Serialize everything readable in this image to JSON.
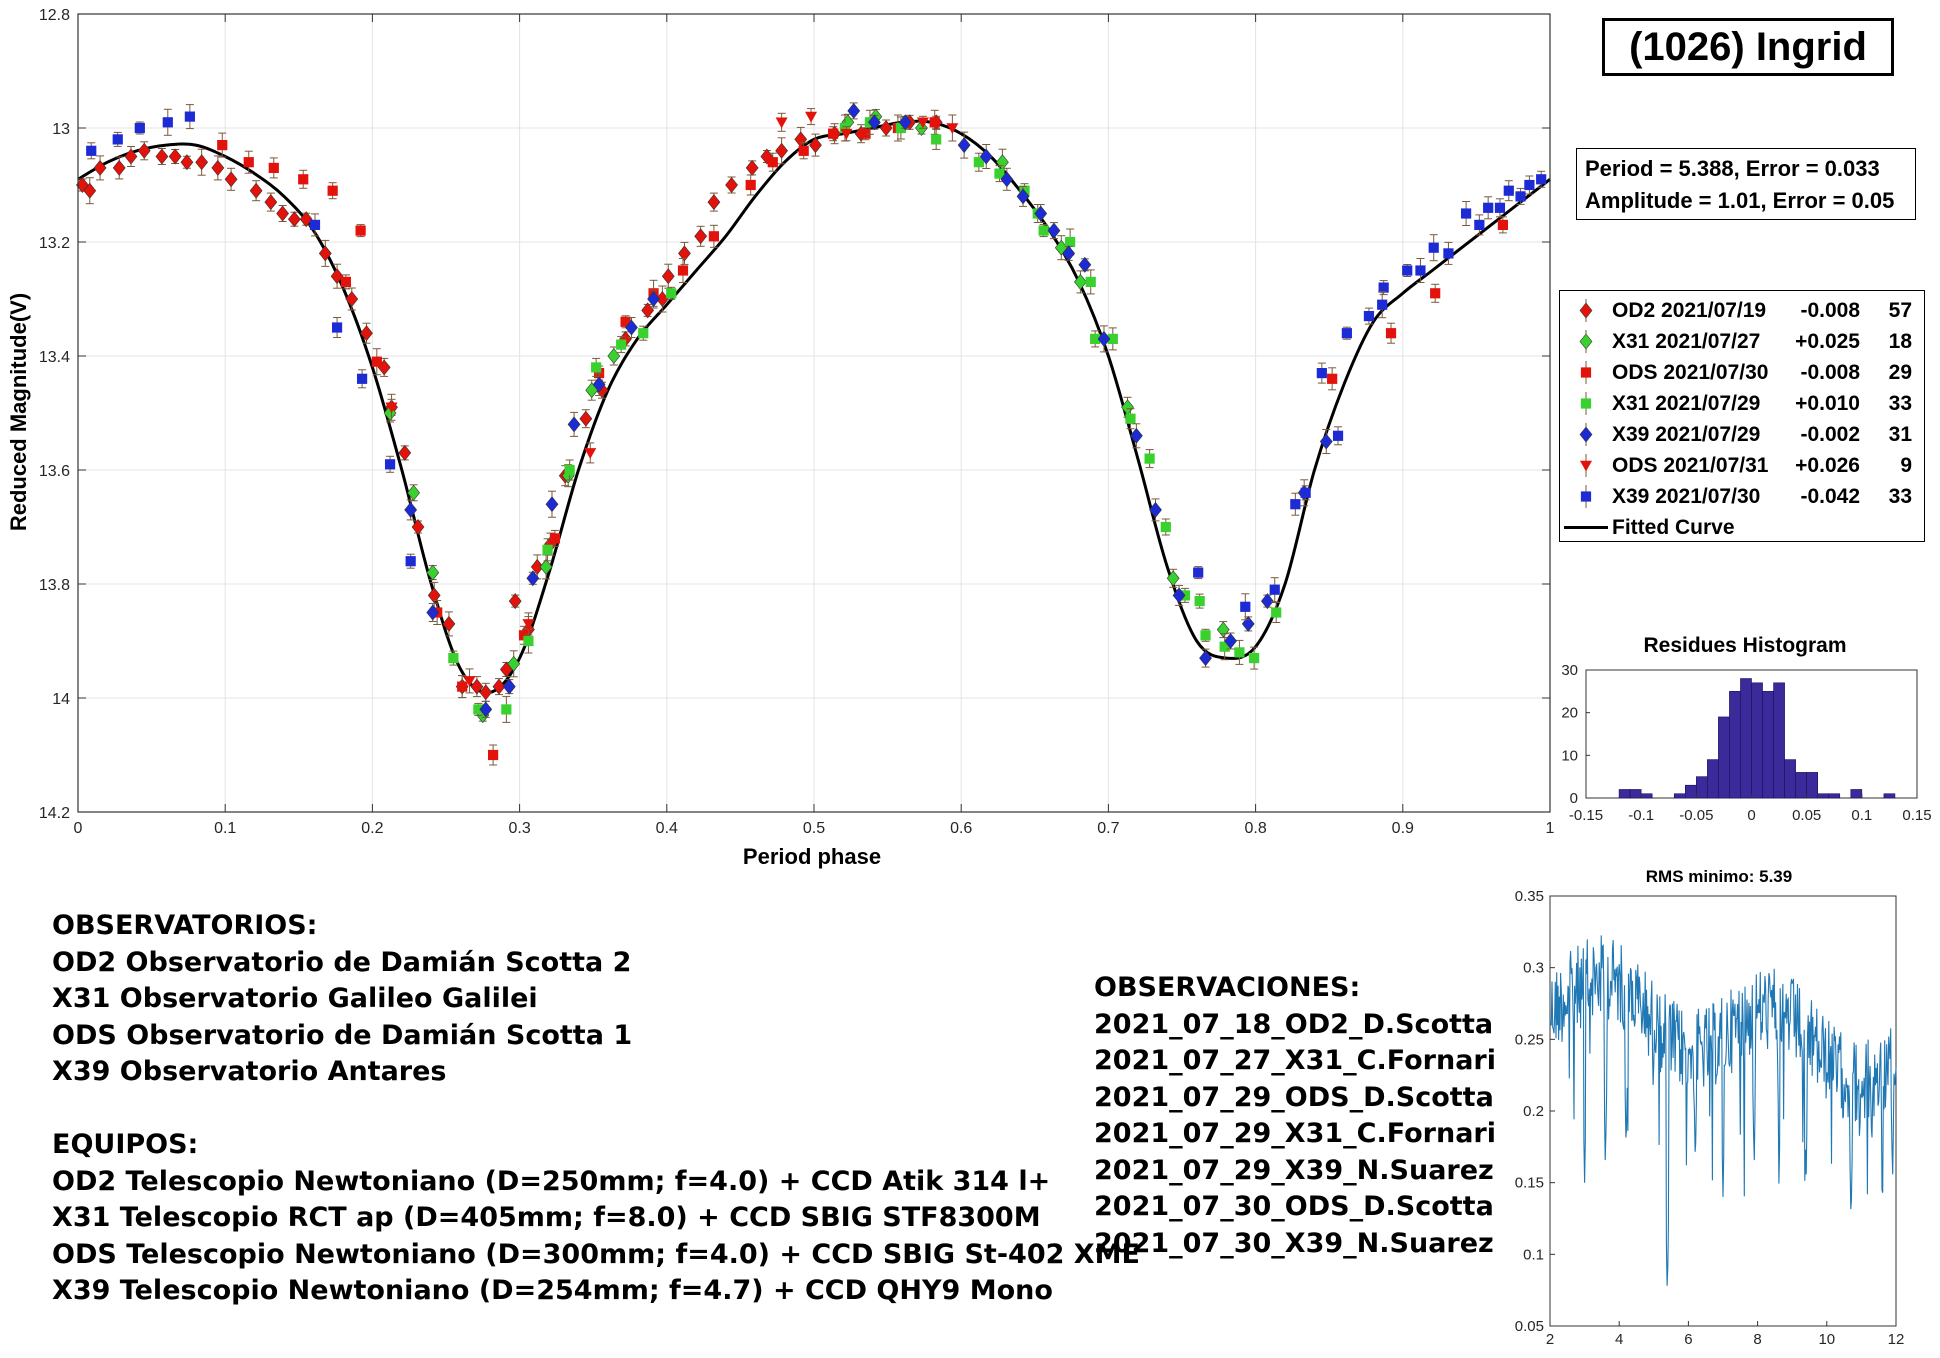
{
  "chart_data": [
    {
      "type": "scatter",
      "title": "(1026) Ingrid",
      "xlabel": "Period phase",
      "ylabel": "Reduced Magnitude(V)",
      "xlim": [
        0,
        1
      ],
      "ylim": [
        12.8,
        14.2
      ],
      "y_reversed": true,
      "grid": true,
      "xticks": [
        "0",
        "0.1",
        "0.2",
        "0.3",
        "0.4",
        "0.5",
        "0.6",
        "0.7",
        "0.8",
        "0.9",
        "1"
      ],
      "yticks": [
        "12.8",
        "13",
        "13.2",
        "13.4",
        "13.6",
        "13.8",
        "14",
        "14.2"
      ],
      "legend_position": "right-outside",
      "period_text": "Period =  5.388, Error = 0.033",
      "amplitude_text": "Amplitude = 1.01, Error = 0.05",
      "series": [
        {
          "name": "OD2 2021/07/19",
          "offset": "-0.008",
          "count": "57",
          "color": "#e3120b",
          "marker": "diamond",
          "x": [
            0.003,
            0.008,
            0.015,
            0.028,
            0.036,
            0.045,
            0.057,
            0.066,
            0.074,
            0.084,
            0.095,
            0.104,
            0.121,
            0.131,
            0.139,
            0.147,
            0.155,
            0.168,
            0.176,
            0.186,
            0.196,
            0.208,
            0.213,
            0.222,
            0.231,
            0.242,
            0.252,
            0.261,
            0.271,
            0.277,
            0.286,
            0.291,
            0.297,
            0.306,
            0.312,
            0.321,
            0.331,
            0.345,
            0.356,
            0.372,
            0.387,
            0.397,
            0.401,
            0.412,
            0.423,
            0.432,
            0.444,
            0.458,
            0.468,
            0.478,
            0.491,
            0.501,
            0.514,
            0.532,
            0.549,
            0.565,
            0.583
          ],
          "y": [
            13.1,
            13.11,
            13.07,
            13.07,
            13.05,
            13.04,
            13.05,
            13.05,
            13.06,
            13.06,
            13.07,
            13.09,
            13.11,
            13.13,
            13.15,
            13.16,
            13.16,
            13.22,
            13.26,
            13.3,
            13.36,
            13.42,
            13.49,
            13.57,
            13.7,
            13.82,
            13.87,
            13.98,
            13.98,
            13.99,
            13.98,
            13.95,
            13.83,
            13.88,
            13.77,
            13.73,
            13.61,
            13.51,
            13.46,
            13.37,
            13.32,
            13.3,
            13.26,
            13.22,
            13.19,
            13.13,
            13.1,
            13.07,
            13.05,
            13.04,
            13.02,
            13.03,
            13.01,
            13.01,
            13.0,
            12.99,
            12.99
          ]
        },
        {
          "name": "X31 2021/07/27",
          "offset": "+0.025",
          "count": "18",
          "color": "#39d12e",
          "marker": "diamond",
          "x": [
            0.212,
            0.228,
            0.241,
            0.275,
            0.296,
            0.318,
            0.333,
            0.349,
            0.364,
            0.523,
            0.542,
            0.573,
            0.628,
            0.668,
            0.681,
            0.713,
            0.744,
            0.778
          ],
          "y": [
            13.5,
            13.64,
            13.78,
            14.03,
            13.94,
            13.77,
            13.61,
            13.46,
            13.4,
            12.99,
            12.98,
            13.0,
            13.06,
            13.21,
            13.27,
            13.49,
            13.79,
            13.88
          ]
        },
        {
          "name": "ODS 2021/07/30",
          "offset": "-0.008",
          "count": "29",
          "color": "#e3120b",
          "marker": "square",
          "x": [
            0.098,
            0.116,
            0.133,
            0.153,
            0.173,
            0.182,
            0.192,
            0.203,
            0.244,
            0.261,
            0.282,
            0.303,
            0.324,
            0.354,
            0.372,
            0.391,
            0.411,
            0.432,
            0.457,
            0.472,
            0.493,
            0.513,
            0.535,
            0.557,
            0.582,
            0.852,
            0.892,
            0.922,
            0.968
          ],
          "y": [
            13.03,
            13.06,
            13.07,
            13.09,
            13.11,
            13.27,
            13.18,
            13.41,
            13.85,
            13.98,
            14.1,
            13.89,
            13.72,
            13.43,
            13.34,
            13.29,
            13.25,
            13.19,
            13.1,
            13.06,
            13.04,
            13.01,
            13.01,
            13.0,
            12.99,
            13.44,
            13.36,
            13.29,
            13.17
          ]
        },
        {
          "name": "X31 2021/07/29",
          "offset": "+0.010",
          "count": "33",
          "color": "#39d12e",
          "marker": "square",
          "x": [
            0.255,
            0.272,
            0.291,
            0.306,
            0.319,
            0.334,
            0.352,
            0.369,
            0.384,
            0.403,
            0.521,
            0.538,
            0.559,
            0.583,
            0.612,
            0.626,
            0.643,
            0.656,
            0.674,
            0.688,
            0.703,
            0.715,
            0.728,
            0.739,
            0.752,
            0.766,
            0.779,
            0.789,
            0.799,
            0.814,
            0.652,
            0.691,
            0.762
          ],
          "y": [
            13.93,
            14.02,
            14.02,
            13.9,
            13.74,
            13.6,
            13.42,
            13.38,
            13.36,
            13.29,
            13.0,
            12.99,
            13.0,
            13.02,
            13.06,
            13.08,
            13.11,
            13.18,
            13.2,
            13.27,
            13.37,
            13.51,
            13.58,
            13.7,
            13.82,
            13.89,
            13.91,
            13.92,
            13.93,
            13.85,
            13.15,
            13.37,
            13.83
          ]
        },
        {
          "name": "X39 2021/07/29",
          "offset": "-0.002",
          "count": "31",
          "color": "#1d2bd4",
          "marker": "diamond",
          "x": [
            0.226,
            0.241,
            0.277,
            0.293,
            0.309,
            0.322,
            0.337,
            0.354,
            0.376,
            0.391,
            0.527,
            0.541,
            0.562,
            0.602,
            0.617,
            0.631,
            0.642,
            0.654,
            0.663,
            0.673,
            0.684,
            0.697,
            0.719,
            0.732,
            0.748,
            0.766,
            0.783,
            0.795,
            0.808,
            0.833,
            0.848
          ],
          "y": [
            13.67,
            13.85,
            14.02,
            13.98,
            13.79,
            13.66,
            13.52,
            13.45,
            13.35,
            13.3,
            12.97,
            12.99,
            12.99,
            13.03,
            13.05,
            13.09,
            13.12,
            13.15,
            13.18,
            13.22,
            13.24,
            13.37,
            13.54,
            13.67,
            13.82,
            13.93,
            13.9,
            13.87,
            13.83,
            13.64,
            13.55
          ]
        },
        {
          "name": "ODS 2021/07/31",
          "offset": "+0.026",
          "count": "9",
          "color": "#e3120b",
          "marker": "triangle",
          "x": [
            0.213,
            0.266,
            0.306,
            0.348,
            0.478,
            0.498,
            0.522,
            0.574,
            0.594
          ],
          "y": [
            13.49,
            13.97,
            13.87,
            13.57,
            12.99,
            12.98,
            13.01,
            12.99,
            13.0
          ]
        },
        {
          "name": "X39 2021/07/30",
          "offset": "-0.042",
          "count": "33",
          "color": "#1d2bd4",
          "marker": "square",
          "x": [
            0.009,
            0.027,
            0.042,
            0.061,
            0.076,
            0.161,
            0.176,
            0.193,
            0.212,
            0.226,
            0.761,
            0.793,
            0.813,
            0.827,
            0.845,
            0.856,
            0.877,
            0.887,
            0.903,
            0.921,
            0.943,
            0.958,
            0.972,
            0.986,
            0.994,
            0.834,
            0.862,
            0.886,
            0.912,
            0.931,
            0.952,
            0.966,
            0.98
          ],
          "y": [
            13.04,
            13.02,
            13.0,
            12.99,
            12.98,
            13.17,
            13.35,
            13.44,
            13.59,
            13.76,
            13.78,
            13.84,
            13.81,
            13.66,
            13.43,
            13.54,
            13.33,
            13.28,
            13.25,
            13.21,
            13.15,
            13.14,
            13.11,
            13.1,
            13.09,
            13.64,
            13.36,
            13.31,
            13.25,
            13.22,
            13.17,
            13.14,
            13.12
          ]
        }
      ],
      "fitted_curve": {
        "name": "Fitted Curve",
        "color": "#000000",
        "x": [
          0.0,
          0.02,
          0.04,
          0.06,
          0.08,
          0.1,
          0.12,
          0.14,
          0.16,
          0.18,
          0.2,
          0.22,
          0.24,
          0.26,
          0.28,
          0.3,
          0.32,
          0.34,
          0.36,
          0.38,
          0.4,
          0.42,
          0.44,
          0.46,
          0.48,
          0.5,
          0.52,
          0.54,
          0.56,
          0.58,
          0.6,
          0.62,
          0.64,
          0.66,
          0.68,
          0.7,
          0.72,
          0.74,
          0.76,
          0.78,
          0.8,
          0.82,
          0.84,
          0.86,
          0.88,
          0.9,
          0.92,
          0.94,
          0.96,
          0.98,
          1.0
        ],
        "y": [
          13.09,
          13.06,
          13.04,
          13.03,
          13.03,
          13.05,
          13.08,
          13.12,
          13.18,
          13.28,
          13.42,
          13.6,
          13.8,
          13.95,
          13.99,
          13.93,
          13.78,
          13.6,
          13.46,
          13.37,
          13.31,
          13.25,
          13.19,
          13.12,
          13.06,
          13.02,
          13.01,
          13.0,
          12.99,
          12.99,
          13.01,
          13.05,
          13.11,
          13.18,
          13.27,
          13.4,
          13.58,
          13.77,
          13.9,
          13.93,
          13.91,
          13.8,
          13.6,
          13.45,
          13.34,
          13.29,
          13.25,
          13.21,
          13.17,
          13.13,
          13.09
        ]
      }
    },
    {
      "type": "bar",
      "title": "Residues Histogram",
      "color": "#3a2a9a",
      "xlim": [
        -0.15,
        0.15
      ],
      "ylim": [
        0,
        30
      ],
      "xticks": [
        "-0.15",
        "-0.1",
        "-0.05",
        "0",
        "0.05",
        "0.1",
        "0.15"
      ],
      "yticks": [
        "0",
        "10",
        "20",
        "30"
      ],
      "bin_width": 0.01,
      "bin_centers": [
        -0.115,
        -0.105,
        -0.095,
        -0.065,
        -0.055,
        -0.045,
        -0.035,
        -0.025,
        -0.015,
        -0.005,
        0.005,
        0.015,
        0.025,
        0.035,
        0.045,
        0.055,
        0.065,
        0.075,
        0.095,
        0.125
      ],
      "values": [
        2,
        2,
        1,
        1,
        3,
        5,
        9,
        19,
        25,
        28,
        27,
        25,
        27,
        9,
        6,
        6,
        1,
        1,
        2,
        1
      ]
    },
    {
      "type": "line",
      "title": "RMS minimo: 5.39",
      "color": "#1f77b4",
      "xlim": [
        2,
        12
      ],
      "ylim": [
        0.05,
        0.35
      ],
      "xticks": [
        "2",
        "4",
        "6",
        "8",
        "10",
        "12"
      ],
      "yticks": [
        "0.05",
        "0.1",
        "0.15",
        "0.2",
        "0.25",
        "0.3",
        "0.35"
      ],
      "min_x": 5.39,
      "min_y": 0.07,
      "deep_minima": [
        [
          3.0,
          0.15
        ],
        [
          3.6,
          0.16
        ],
        [
          4.2,
          0.17
        ],
        [
          5.39,
          0.07
        ],
        [
          6.2,
          0.16
        ],
        [
          7.0,
          0.14
        ],
        [
          7.9,
          0.16
        ],
        [
          8.6,
          0.2
        ],
        [
          9.4,
          0.15
        ],
        [
          10.7,
          0.12
        ],
        [
          11.3,
          0.17
        ],
        [
          11.9,
          0.15
        ]
      ]
    }
  ],
  "info": {
    "observatorios_title": "OBSERVATORIOS:",
    "observatorios": [
      "OD2 Observatorio de Damián Scotta 2",
      "X31 Observatorio Galileo Galilei",
      "ODS Observatorio de Damián Scotta 1",
      "X39 Observatorio Antares"
    ],
    "equipos_title": "EQUIPOS:",
    "equipos": [
      "OD2 Telescopio Newtoniano (D=250mm; f=4.0) + CCD Atik 314 l+",
      "X31 Telescopio RCT ap (D=405mm; f=8.0) + CCD SBIG STF8300M",
      "ODS Telescopio Newtoniano (D=300mm; f=4.0) + CCD SBIG St-402 XME",
      "X39 Telescopio Newtoniano (D=254mm; f=4.7) + CCD QHY9 Mono"
    ],
    "observaciones_title": "OBSERVACIONES:",
    "observaciones": [
      "2021_07_18_OD2_D.Scotta",
      "2021_07_27_X31_C.Fornari",
      "2021_07_29_ODS_D.Scotta",
      "2021_07_29_X31_C.Fornari",
      "2021_07_29_X39_N.Suarez",
      "2021_07_30_ODS_D.Scotta",
      "2021_07_30_X39_N.Suarez"
    ]
  }
}
